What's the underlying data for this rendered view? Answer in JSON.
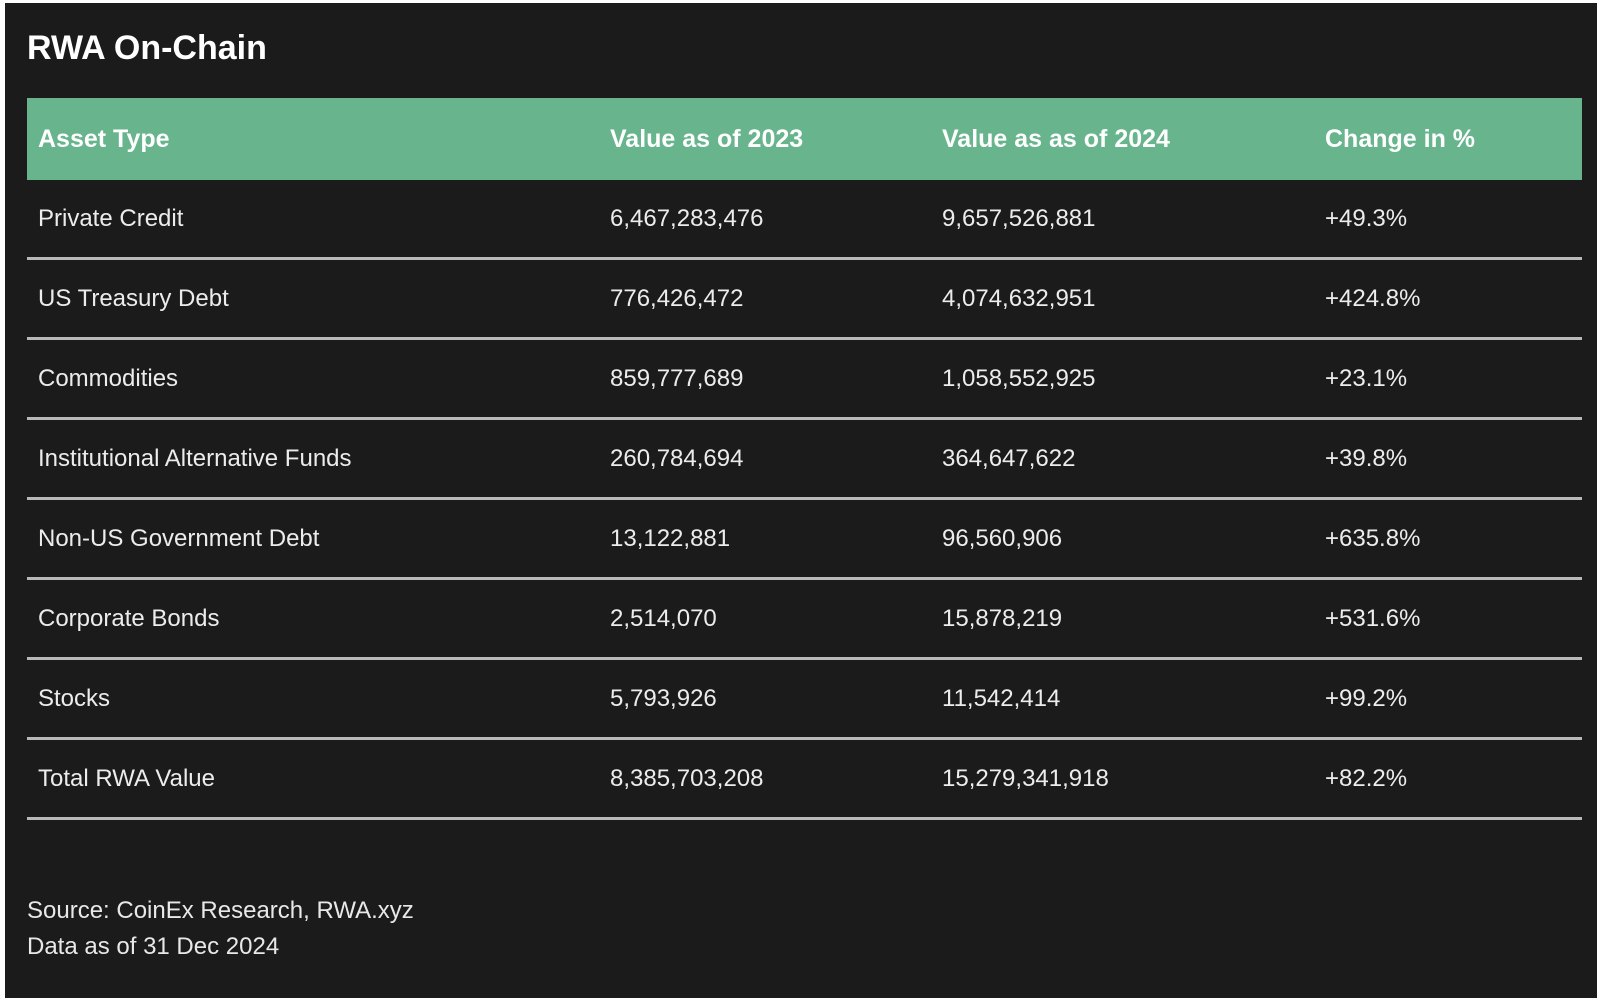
{
  "title": "RWA On-Chain",
  "table": {
    "headers": [
      "Asset Type",
      "Value as of 2023",
      "Value as as of 2024",
      "Change in %"
    ],
    "rows": [
      [
        "Private Credit",
        "6,467,283,476",
        "9,657,526,881",
        "+49.3%"
      ],
      [
        "US Treasury Debt",
        "776,426,472",
        "4,074,632,951",
        "+424.8%"
      ],
      [
        "Commodities",
        "859,777,689",
        "1,058,552,925",
        "+23.1%"
      ],
      [
        "Institutional Alternative Funds",
        "260,784,694",
        "364,647,622",
        "+39.8%"
      ],
      [
        "Non-US Government Debt",
        "13,122,881",
        "96,560,906",
        "+635.8%"
      ],
      [
        "Corporate Bonds",
        "2,514,070",
        "15,878,219",
        "+531.6%"
      ],
      [
        "Stocks",
        "5,793,926",
        "11,542,414",
        "+99.2%"
      ],
      [
        "Total RWA Value",
        "8,385,703,208",
        "15,279,341,918",
        "+82.2%"
      ]
    ]
  },
  "footer": {
    "source": "Source: CoinEx Research, RWA.xyz",
    "date_note": "Data as of 31 Dec 2024"
  },
  "colors": {
    "background": "#1b1b1b",
    "header_fill": "#67b48d",
    "text": "#ececec",
    "divider": "#b9b9b9"
  }
}
